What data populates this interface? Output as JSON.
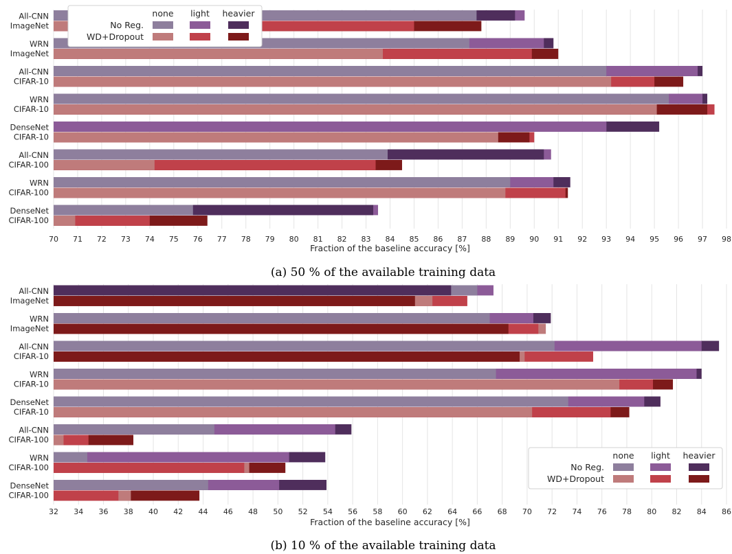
{
  "colors": {
    "noreg": {
      "none": "#8e7f9d",
      "light": "#8c5b98",
      "heavier": "#4f2e5c"
    },
    "wd": {
      "none": "#bf7b7b",
      "light": "#c0414a",
      "heavier": "#7d1a1a"
    },
    "grid": "#e4e4e4"
  },
  "legend": {
    "columns": [
      "none",
      "light",
      "heavier"
    ],
    "rows": [
      "No Reg.",
      "WD+Dropout"
    ]
  },
  "chart_data": [
    {
      "type": "bar",
      "orientation": "horizontal-stacked",
      "caption": "(a) 50 % of the available training data",
      "xlabel": "Fraction of the baseline accuracy [%]",
      "xlim": [
        70,
        98
      ],
      "xticks": [
        70,
        71,
        72,
        73,
        74,
        75,
        76,
        77,
        78,
        79,
        80,
        81,
        82,
        83,
        84,
        85,
        86,
        87,
        88,
        89,
        90,
        91,
        92,
        93,
        94,
        95,
        96,
        97,
        98
      ],
      "legend_position": "top-left",
      "categories": [
        [
          "All-CNN",
          "ImageNet"
        ],
        [
          "WRN",
          "ImageNet"
        ],
        [
          "All-CNN",
          "CIFAR-10"
        ],
        [
          "WRN",
          "CIFAR-10"
        ],
        [
          "DenseNet",
          "CIFAR-10"
        ],
        [
          "All-CNN",
          "CIFAR-100"
        ],
        [
          "WRN",
          "CIFAR-100"
        ],
        [
          "DenseNet",
          "CIFAR-100"
        ]
      ],
      "series": [
        {
          "name": "No Reg.",
          "none": [
            87.6,
            87.3,
            93.0,
            95.6,
            93.0,
            83.9,
            89.0,
            75.8
          ],
          "light": [
            89.6,
            90.4,
            96.8,
            97.0,
            93.0,
            90.7,
            90.8,
            83.5
          ],
          "heavier": [
            89.2,
            90.8,
            97.0,
            97.2,
            95.2,
            90.4,
            91.5,
            83.3
          ]
        },
        {
          "name": "WD+Dropout",
          "none": [
            71.2,
            83.7,
            93.2,
            95.1,
            88.5,
            74.2,
            88.8,
            70.9
          ],
          "light": [
            85.0,
            89.9,
            95.0,
            97.5,
            90.0,
            83.4,
            91.3,
            74.0
          ],
          "heavier": [
            87.8,
            91.0,
            96.2,
            97.2,
            89.8,
            84.5,
            91.4,
            76.4
          ]
        }
      ]
    },
    {
      "type": "bar",
      "orientation": "horizontal-stacked",
      "caption": "(b) 10 % of the available training data",
      "xlabel": "Fraction of the baseline accuracy [%]",
      "xlim": [
        32,
        86
      ],
      "xticks": [
        32,
        34,
        36,
        38,
        40,
        42,
        44,
        46,
        48,
        50,
        52,
        54,
        56,
        58,
        60,
        62,
        64,
        66,
        68,
        70,
        72,
        74,
        76,
        78,
        80,
        82,
        84,
        86
      ],
      "legend_position": "lower-right",
      "categories": [
        [
          "All-CNN",
          "ImageNet"
        ],
        [
          "WRN",
          "ImageNet"
        ],
        [
          "All-CNN",
          "CIFAR-10"
        ],
        [
          "WRN",
          "CIFAR-10"
        ],
        [
          "DenseNet",
          "CIFAR-10"
        ],
        [
          "All-CNN",
          "CIFAR-100"
        ],
        [
          "WRN",
          "CIFAR-100"
        ],
        [
          "DenseNet",
          "CIFAR-100"
        ]
      ],
      "series": [
        {
          "name": "No Reg.",
          "none": [
            66.0,
            67.0,
            72.2,
            67.5,
            73.3,
            44.9,
            34.7,
            44.4
          ],
          "light": [
            67.3,
            70.5,
            84.0,
            83.6,
            79.4,
            54.6,
            50.9,
            50.1
          ],
          "heavier": [
            63.9,
            71.9,
            85.4,
            84.0,
            80.7,
            55.9,
            53.8,
            53.9
          ]
        },
        {
          "name": "WD+Dropout",
          "none": [
            62.4,
            71.5,
            69.8,
            77.4,
            70.4,
            32.8,
            47.7,
            38.2
          ],
          "light": [
            65.2,
            70.9,
            75.3,
            80.1,
            76.7,
            34.8,
            47.3,
            37.2
          ],
          "heavier": [
            61.0,
            68.5,
            69.4,
            81.7,
            78.2,
            38.4,
            50.6,
            43.7
          ]
        }
      ]
    }
  ]
}
